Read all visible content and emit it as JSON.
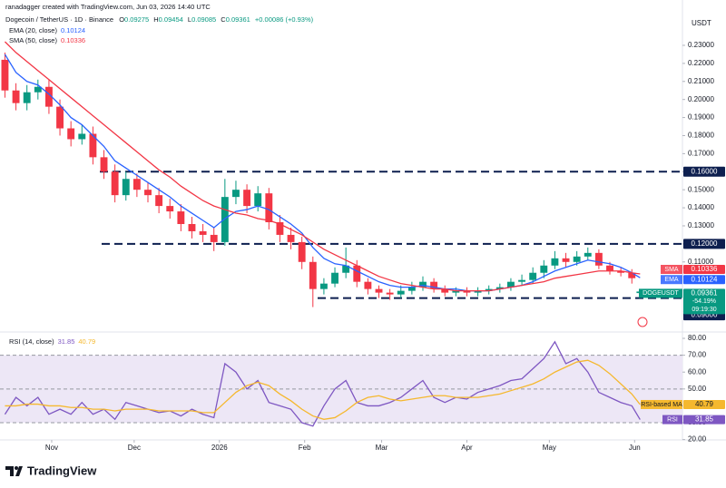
{
  "header": {
    "credit": "ranadagger created with TradingView.com, Jun 03, 2026 14:40 UTC",
    "symbol": "Dogecoin / TetherUS · 1D · Binance",
    "ohlc_labels": [
      "O",
      "H",
      "L",
      "C"
    ],
    "change": "+0.00086 (+0.93%)",
    "ema_label": "EMA (20, close)",
    "sma_label": "SMA (50, close)",
    "rsi_label": "RSI (14, close)"
  },
  "chart_data": [
    {
      "type": "candlestick",
      "axis_label": "USDT",
      "up_color": "#089981",
      "down_color": "#f23645",
      "x": [
        -17,
        -13,
        -9,
        -5,
        -1,
        3,
        7,
        11,
        15,
        19,
        23,
        27,
        31,
        35,
        39,
        43,
        47,
        51,
        55,
        59,
        63,
        67,
        71,
        75,
        79,
        83,
        87,
        91,
        95,
        99,
        103,
        107,
        111,
        115,
        119,
        123,
        127,
        131,
        135,
        139,
        143,
        147,
        151,
        155,
        159,
        163,
        167,
        171,
        175,
        179,
        183,
        187,
        191,
        195,
        199,
        203,
        207,
        211,
        214
      ],
      "open": [
        0.222,
        0.205,
        0.198,
        0.204,
        0.207,
        0.196,
        0.184,
        0.178,
        0.181,
        0.168,
        0.16,
        0.147,
        0.156,
        0.15,
        0.147,
        0.141,
        0.138,
        0.131,
        0.127,
        0.125,
        0.121,
        0.146,
        0.15,
        0.141,
        0.148,
        0.132,
        0.125,
        0.121,
        0.11,
        0.095,
        0.098,
        0.104,
        0.108,
        0.099,
        0.095,
        0.093,
        0.092,
        0.094,
        0.096,
        0.099,
        0.095,
        0.093,
        0.094,
        0.093,
        0.094,
        0.095,
        0.096,
        0.099,
        0.1,
        0.104,
        0.108,
        0.112,
        0.11,
        0.113,
        0.115,
        0.108,
        0.105,
        0.104,
        0.09275
      ],
      "high": [
        0.226,
        0.209,
        0.208,
        0.211,
        0.211,
        0.2,
        0.188,
        0.186,
        0.185,
        0.172,
        0.164,
        0.16,
        0.159,
        0.154,
        0.151,
        0.145,
        0.142,
        0.135,
        0.131,
        0.129,
        0.156,
        0.155,
        0.153,
        0.152,
        0.151,
        0.136,
        0.129,
        0.124,
        0.113,
        0.101,
        0.107,
        0.118,
        0.111,
        0.101,
        0.097,
        0.095,
        0.097,
        0.099,
        0.102,
        0.101,
        0.097,
        0.096,
        0.096,
        0.096,
        0.097,
        0.098,
        0.101,
        0.103,
        0.107,
        0.111,
        0.116,
        0.115,
        0.116,
        0.118,
        0.117,
        0.11,
        0.107,
        0.106,
        0.09454
      ],
      "low": [
        0.201,
        0.194,
        0.194,
        0.2,
        0.192,
        0.18,
        0.174,
        0.175,
        0.164,
        0.156,
        0.143,
        0.144,
        0.146,
        0.143,
        0.137,
        0.134,
        0.127,
        0.123,
        0.121,
        0.116,
        0.119,
        0.142,
        0.137,
        0.138,
        0.128,
        0.121,
        0.117,
        0.106,
        0.085,
        0.092,
        0.096,
        0.101,
        0.096,
        0.092,
        0.09,
        0.089,
        0.09,
        0.092,
        0.094,
        0.093,
        0.091,
        0.091,
        0.091,
        0.091,
        0.092,
        0.093,
        0.094,
        0.097,
        0.098,
        0.101,
        0.106,
        0.107,
        0.108,
        0.111,
        0.106,
        0.103,
        0.102,
        0.098,
        0.09085
      ],
      "close": [
        0.205,
        0.198,
        0.204,
        0.207,
        0.196,
        0.184,
        0.178,
        0.181,
        0.168,
        0.16,
        0.147,
        0.156,
        0.15,
        0.147,
        0.141,
        0.138,
        0.131,
        0.127,
        0.125,
        0.121,
        0.146,
        0.15,
        0.141,
        0.148,
        0.132,
        0.125,
        0.121,
        0.11,
        0.095,
        0.098,
        0.104,
        0.108,
        0.099,
        0.095,
        0.093,
        0.092,
        0.094,
        0.096,
        0.099,
        0.095,
        0.093,
        0.094,
        0.093,
        0.094,
        0.095,
        0.096,
        0.099,
        0.1,
        0.104,
        0.108,
        0.112,
        0.11,
        0.113,
        0.115,
        0.108,
        0.105,
        0.104,
        0.101,
        0.09361
      ],
      "series": [
        {
          "name": "EMA",
          "color": "#2962ff",
          "values": [
            0.225,
            0.215,
            0.21,
            0.208,
            0.203,
            0.197,
            0.19,
            0.186,
            0.18,
            0.174,
            0.166,
            0.162,
            0.158,
            0.154,
            0.15,
            0.146,
            0.141,
            0.137,
            0.133,
            0.129,
            0.134,
            0.138,
            0.139,
            0.141,
            0.139,
            0.135,
            0.131,
            0.126,
            0.118,
            0.112,
            0.109,
            0.108,
            0.105,
            0.102,
            0.099,
            0.097,
            0.096,
            0.096,
            0.097,
            0.096,
            0.095,
            0.095,
            0.094,
            0.094,
            0.094,
            0.095,
            0.096,
            0.097,
            0.099,
            0.102,
            0.105,
            0.107,
            0.109,
            0.111,
            0.11,
            0.109,
            0.107,
            0.104,
            0.10124
          ]
        },
        {
          "name": "SMA",
          "color": "#f23645",
          "values": [
            0.232,
            0.226,
            0.221,
            0.216,
            0.211,
            0.206,
            0.201,
            0.196,
            0.191,
            0.186,
            0.181,
            0.176,
            0.171,
            0.166,
            0.161,
            0.157,
            0.152,
            0.148,
            0.144,
            0.141,
            0.139,
            0.137,
            0.136,
            0.134,
            0.133,
            0.131,
            0.128,
            0.125,
            0.121,
            0.117,
            0.114,
            0.111,
            0.108,
            0.105,
            0.102,
            0.1,
            0.098,
            0.097,
            0.096,
            0.095,
            0.095,
            0.094,
            0.094,
            0.094,
            0.094,
            0.095,
            0.096,
            0.097,
            0.098,
            0.099,
            0.101,
            0.102,
            0.103,
            0.104,
            0.105,
            0.105,
            0.105,
            0.104,
            0.10336
          ]
        }
      ],
      "last_label": "DOGEUSDT",
      "last_notes": [
        "-54.19%",
        "09:19:30"
      ],
      "levels": [
        {
          "value": 0.16,
          "label": "0.16000"
        },
        {
          "value": 0.12,
          "label": "0.12000"
        },
        {
          "value": 0.09,
          "label": "0.09000"
        }
      ],
      "level_color": "#0d1f4f",
      "xlim": [
        -18.8,
        229.4
      ],
      "xticks": [
        {
          "value": 0,
          "label": "Nov"
        },
        {
          "value": 30,
          "label": "Dec"
        },
        {
          "value": 61,
          "label": "2026"
        },
        {
          "value": 92,
          "label": "Feb"
        },
        {
          "value": 120,
          "label": "Mar"
        },
        {
          "value": 151,
          "label": "Apr"
        },
        {
          "value": 181,
          "label": "May"
        },
        {
          "value": 212,
          "label": "Jun"
        }
      ],
      "ylim": [
        0.0717,
        0.2526
      ],
      "yticks": [
        {
          "value": 0.11,
          "label": "0.11000"
        },
        {
          "value": 0.12,
          "label": "0.12000"
        },
        {
          "value": 0.13,
          "label": "0.13000"
        },
        {
          "value": 0.14,
          "label": "0.14000"
        },
        {
          "value": 0.15,
          "label": "0.15000"
        },
        {
          "value": 0.16,
          "label": "0.16000"
        },
        {
          "value": 0.17,
          "label": "0.17000"
        },
        {
          "value": 0.18,
          "label": "0.18000"
        },
        {
          "value": 0.19,
          "label": "0.19000"
        },
        {
          "value": 0.2,
          "label": "0.20000"
        },
        {
          "value": 0.21,
          "label": "0.21000"
        },
        {
          "value": 0.22,
          "label": "0.22000"
        },
        {
          "value": 0.23,
          "label": "0.23000"
        }
      ]
    },
    {
      "type": "line",
      "x": [
        -17,
        -13,
        -9,
        -5,
        -1,
        3,
        7,
        11,
        15,
        19,
        23,
        27,
        31,
        35,
        39,
        43,
        47,
        51,
        55,
        59,
        63,
        67,
        71,
        75,
        79,
        83,
        87,
        91,
        95,
        99,
        103,
        107,
        111,
        115,
        119,
        123,
        127,
        131,
        135,
        139,
        143,
        147,
        151,
        155,
        159,
        163,
        167,
        171,
        175,
        179,
        183,
        187,
        191,
        195,
        199,
        203,
        207,
        211,
        214
      ],
      "series": [
        {
          "name": "RSI",
          "color": "#7e57c2",
          "values": [
            35,
            45,
            40,
            45,
            35,
            38,
            35,
            42,
            35,
            38,
            32,
            42,
            40,
            38,
            36,
            37,
            34,
            38,
            35,
            33,
            65,
            60,
            50,
            55,
            42,
            40,
            38,
            30,
            28,
            40,
            50,
            55,
            42,
            40,
            40,
            42,
            45,
            50,
            55,
            45,
            42,
            45,
            44,
            48,
            50,
            52,
            55,
            56,
            62,
            68,
            78,
            65,
            68,
            60,
            48,
            45,
            42,
            40,
            31.85
          ]
        },
        {
          "name": "RSI-based MA",
          "color": "#f5b82e",
          "values": [
            40,
            40,
            41,
            41,
            40,
            40,
            39,
            39,
            38,
            38,
            37,
            38,
            38,
            38,
            37,
            37,
            37,
            37,
            36,
            36,
            42,
            48,
            52,
            54,
            52,
            47,
            43,
            38,
            34,
            32,
            33,
            37,
            42,
            45,
            46,
            44,
            43,
            44,
            45,
            46,
            46,
            45,
            45,
            45,
            46,
            47,
            49,
            51,
            53,
            56,
            60,
            63,
            66,
            67,
            64,
            59,
            53,
            47,
            40.79
          ]
        }
      ],
      "band": [
        30,
        70
      ],
      "hlines": [
        70,
        50,
        30
      ],
      "band_color": "#ede7f6",
      "ylim": [
        19.8,
        82.7
      ],
      "yticks": [
        {
          "value": 20,
          "label": "20.00"
        },
        {
          "value": 30,
          "label": "30.00"
        },
        {
          "value": 50,
          "label": "50.00"
        },
        {
          "value": 60,
          "label": "60.00"
        },
        {
          "value": 70,
          "label": "70.00"
        },
        {
          "value": 80,
          "label": "80.00"
        }
      ]
    }
  ],
  "footer": {
    "brand": "TradingView"
  }
}
